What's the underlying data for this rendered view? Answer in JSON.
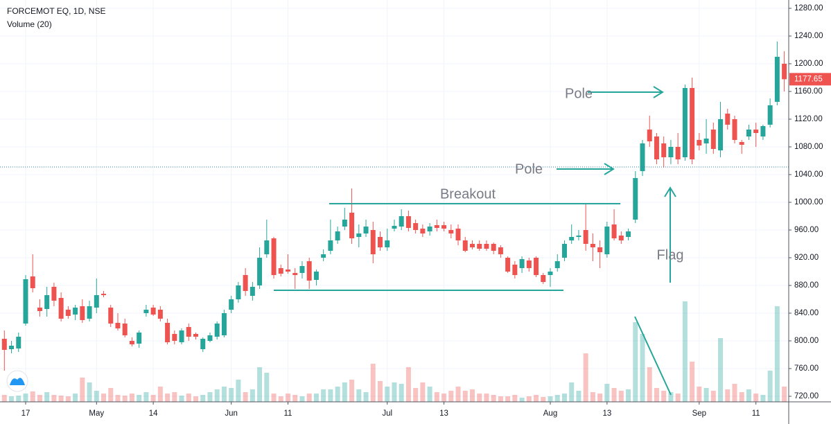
{
  "chart_data": {
    "type": "candlestick",
    "title": "FORCEMOT EQ, 1D, NSE",
    "subtitle": "Volume (20)",
    "annotations": [
      "Breakout",
      "Pole",
      "Pole",
      "Flag"
    ],
    "up_color": "#26a69a",
    "down_color": "#ef5350",
    "grid": true,
    "ylim": [
      720,
      1280
    ],
    "yticks": [
      {
        "value": 720,
        "label": "720.00"
      },
      {
        "value": 760,
        "label": "760.00"
      },
      {
        "value": 800,
        "label": "800.00"
      },
      {
        "value": 840,
        "label": "840.00"
      },
      {
        "value": 880,
        "label": "880.00"
      },
      {
        "value": 920,
        "label": "920.00"
      },
      {
        "value": 960,
        "label": "960.00"
      },
      {
        "value": 1000,
        "label": "1000.00"
      },
      {
        "value": 1040,
        "label": "1040.00"
      },
      {
        "value": 1080,
        "label": "1080.00"
      },
      {
        "value": 1120,
        "label": "1120.00"
      },
      {
        "value": 1160,
        "label": "1160.00"
      },
      {
        "value": 1200,
        "label": "1200.00"
      },
      {
        "value": 1240,
        "label": "1240.00"
      },
      {
        "value": 1280,
        "label": "1280.00"
      }
    ],
    "categories": [
      null,
      null,
      null,
      "17",
      null,
      null,
      null,
      null,
      null,
      null,
      null,
      null,
      null,
      "May",
      null,
      null,
      null,
      null,
      null,
      null,
      null,
      "14",
      null,
      null,
      null,
      null,
      null,
      null,
      null,
      null,
      null,
      null,
      "Jun",
      null,
      null,
      null,
      null,
      null,
      null,
      null,
      "11",
      null,
      null,
      null,
      null,
      null,
      null,
      null,
      null,
      null,
      null,
      null,
      null,
      null,
      "Jul",
      null,
      null,
      null,
      null,
      null,
      null,
      null,
      "13",
      null,
      null,
      null,
      null,
      null,
      null,
      null,
      null,
      null,
      null,
      null,
      null,
      null,
      null,
      "Aug",
      null,
      null,
      null,
      null,
      null,
      null,
      null,
      "13",
      null,
      null,
      null,
      null,
      null,
      null,
      null,
      null,
      null,
      null,
      null,
      null,
      "Sep",
      null,
      null,
      null,
      null,
      null,
      null,
      null,
      "11",
      null,
      null,
      null,
      null
    ],
    "ohlc": [
      [
        803,
        815,
        757,
        787
      ],
      [
        788,
        800,
        782,
        793
      ],
      [
        789,
        812,
        784,
        806
      ],
      [
        825,
        895,
        822,
        889
      ],
      [
        893,
        925,
        870,
        876
      ],
      [
        848,
        860,
        835,
        843
      ],
      [
        846,
        878,
        835,
        866
      ],
      [
        878,
        884,
        850,
        858
      ],
      [
        862,
        870,
        828,
        832
      ],
      [
        845,
        850,
        832,
        836
      ],
      [
        838,
        852,
        830,
        848
      ],
      [
        850,
        860,
        826,
        830
      ],
      [
        832,
        858,
        828,
        850
      ],
      [
        848,
        890,
        840,
        866
      ],
      [
        868,
        872,
        863,
        866
      ],
      [
        848,
        852,
        820,
        825
      ],
      [
        826,
        840,
        815,
        818
      ],
      [
        825,
        832,
        805,
        808
      ],
      [
        800,
        805,
        792,
        795
      ],
      [
        796,
        815,
        790,
        812
      ],
      [
        840,
        852,
        835,
        845
      ],
      [
        848,
        852,
        836,
        838
      ],
      [
        845,
        850,
        828,
        832
      ],
      [
        826,
        832,
        795,
        798
      ],
      [
        810,
        815,
        795,
        800
      ],
      [
        798,
        818,
        795,
        815
      ],
      [
        820,
        825,
        800,
        806
      ],
      [
        810,
        812,
        802,
        806
      ],
      [
        788,
        805,
        784,
        803
      ],
      [
        800,
        812,
        798,
        808
      ],
      [
        806,
        828,
        802,
        825
      ],
      [
        808,
        845,
        805,
        840
      ],
      [
        845,
        865,
        840,
        860
      ],
      [
        860,
        885,
        855,
        880
      ],
      [
        895,
        905,
        865,
        872
      ],
      [
        865,
        885,
        858,
        878
      ],
      [
        880,
        935,
        875,
        920
      ],
      [
        925,
        975,
        920,
        945
      ],
      [
        948,
        950,
        890,
        895
      ],
      [
        905,
        910,
        893,
        897
      ],
      [
        903,
        925,
        897,
        900
      ],
      [
        898,
        905,
        875,
        895
      ],
      [
        898,
        915,
        890,
        908
      ],
      [
        915,
        920,
        875,
        887
      ],
      [
        888,
        903,
        880,
        900
      ],
      [
        920,
        932,
        915,
        925
      ],
      [
        930,
        975,
        925,
        945
      ],
      [
        945,
        965,
        940,
        958
      ],
      [
        965,
        992,
        960,
        975
      ],
      [
        985,
        1020,
        940,
        948
      ],
      [
        950,
        968,
        935,
        955
      ],
      [
        955,
        975,
        950,
        965
      ],
      [
        960,
        972,
        912,
        925
      ],
      [
        950,
        958,
        930,
        935
      ],
      [
        935,
        962,
        930,
        945
      ],
      [
        962,
        975,
        958,
        966
      ],
      [
        965,
        990,
        960,
        980
      ],
      [
        980,
        988,
        958,
        963
      ],
      [
        970,
        975,
        955,
        960
      ],
      [
        962,
        968,
        950,
        955
      ],
      [
        958,
        970,
        952,
        965
      ],
      [
        967,
        975,
        958,
        963
      ],
      [
        967,
        972,
        958,
        962
      ],
      [
        960,
        968,
        948,
        955
      ],
      [
        962,
        968,
        938,
        945
      ],
      [
        945,
        950,
        928,
        930
      ],
      [
        940,
        945,
        932,
        935
      ],
      [
        940,
        945,
        930,
        933
      ],
      [
        940,
        945,
        930,
        933
      ],
      [
        940,
        942,
        925,
        930
      ],
      [
        935,
        938,
        920,
        925
      ],
      [
        920,
        922,
        898,
        900
      ],
      [
        910,
        915,
        890,
        895
      ],
      [
        905,
        922,
        898,
        918
      ],
      [
        916,
        920,
        900,
        905
      ],
      [
        920,
        922,
        892,
        895
      ],
      [
        895,
        898,
        882,
        885
      ],
      [
        895,
        905,
        878,
        900
      ],
      [
        905,
        925,
        900,
        915
      ],
      [
        920,
        945,
        915,
        940
      ],
      [
        945,
        968,
        940,
        950
      ],
      [
        950,
        960,
        945,
        952
      ],
      [
        960,
        998,
        930,
        940
      ],
      [
        940,
        955,
        915,
        935
      ],
      [
        935,
        945,
        905,
        928
      ],
      [
        925,
        972,
        920,
        965
      ],
      [
        968,
        990,
        945,
        948
      ],
      [
        952,
        958,
        940,
        945
      ],
      [
        950,
        962,
        945,
        958
      ],
      [
        975,
        1045,
        970,
        1035
      ],
      [
        1045,
        1090,
        1038,
        1085
      ],
      [
        1105,
        1125,
        1080,
        1088
      ],
      [
        1095,
        1100,
        1055,
        1062
      ],
      [
        1085,
        1095,
        1050,
        1065
      ],
      [
        1065,
        1090,
        1055,
        1080
      ],
      [
        1080,
        1100,
        1055,
        1062
      ],
      [
        1065,
        1170,
        1060,
        1165
      ],
      [
        1165,
        1180,
        1055,
        1062
      ],
      [
        1090,
        1100,
        1075,
        1082
      ],
      [
        1085,
        1120,
        1070,
        1092
      ],
      [
        1105,
        1115,
        1070,
        1077
      ],
      [
        1075,
        1145,
        1065,
        1120
      ],
      [
        1128,
        1135,
        1105,
        1112
      ],
      [
        1120,
        1125,
        1085,
        1090
      ],
      [
        1087,
        1090,
        1070,
        1083
      ],
      [
        1095,
        1112,
        1090,
        1105
      ],
      [
        1105,
        1115,
        1080,
        1100
      ],
      [
        1095,
        1112,
        1090,
        1110
      ],
      [
        1112,
        1150,
        1108,
        1140
      ],
      [
        1145,
        1232,
        1140,
        1210
      ],
      [
        1200,
        1218,
        1160,
        1177.65
      ]
    ],
    "volume": [
      10,
      8,
      9,
      12,
      15,
      10,
      14,
      10,
      9,
      8,
      12,
      35,
      28,
      16,
      12,
      20,
      10,
      9,
      12,
      10,
      14,
      10,
      22,
      12,
      14,
      9,
      12,
      8,
      10,
      14,
      18,
      22,
      20,
      32,
      14,
      18,
      50,
      42,
      12,
      8,
      12,
      10,
      8,
      12,
      12,
      18,
      18,
      22,
      28,
      32,
      18,
      14,
      55,
      30,
      22,
      28,
      26,
      50,
      20,
      28,
      22,
      14,
      12,
      16,
      22,
      16,
      18,
      12,
      12,
      10,
      8,
      8,
      10,
      6,
      8,
      10,
      7,
      8,
      10,
      12,
      28,
      16,
      70,
      14,
      12,
      26,
      20,
      16,
      18,
      115,
      98,
      50,
      20,
      16,
      14,
      12,
      145,
      58,
      22,
      20,
      16,
      92,
      18,
      26,
      14,
      18,
      12,
      10,
      45,
      138,
      22
    ]
  }
}
